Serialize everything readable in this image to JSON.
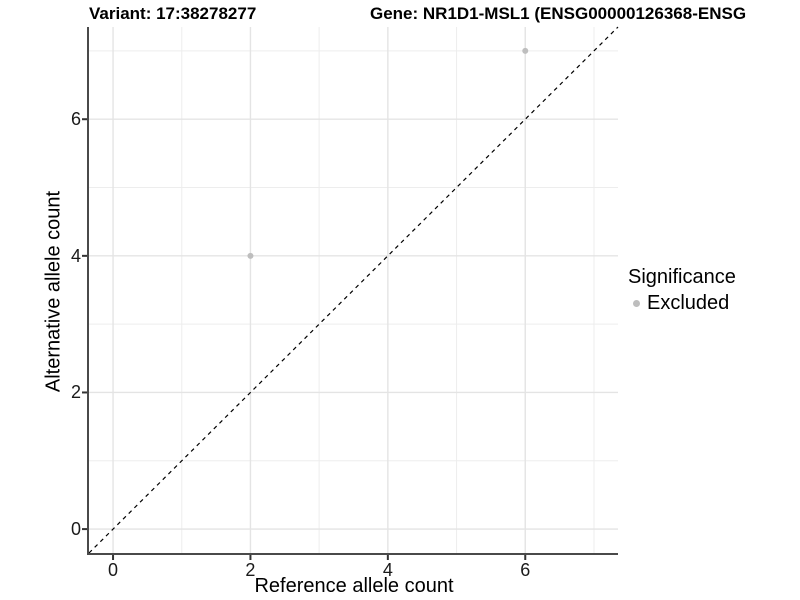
{
  "chart_data": {
    "type": "scatter",
    "title_left": "Variant: 17:38278277",
    "title_right": "Gene: NR1D1-MSL1 (ENSG00000126368-ENSG",
    "xlabel": "Reference allele count",
    "ylabel": "Alternative allele count",
    "xlim": [
      -0.35,
      7.35
    ],
    "ylim": [
      -0.35,
      7.35
    ],
    "x_ticks": [
      0,
      2,
      4,
      6
    ],
    "y_ticks": [
      0,
      2,
      4,
      6
    ],
    "x_minor_ticks": [
      1,
      3,
      5,
      7
    ],
    "y_minor_ticks": [
      1,
      3,
      5,
      7
    ],
    "grid": true,
    "identity_line": {
      "style": "dashed",
      "color": "#000000",
      "from": [
        -0.35,
        -0.35
      ],
      "to": [
        7.35,
        7.35
      ]
    },
    "series": [
      {
        "name": "Excluded",
        "color": "#bebebe",
        "points": [
          {
            "x": 2,
            "y": 4
          },
          {
            "x": 6,
            "y": 7
          }
        ]
      }
    ],
    "legend": {
      "position": "right",
      "title": "Significance",
      "items": [
        {
          "label": "Excluded",
          "color": "#bebebe",
          "marker": "circle"
        }
      ]
    }
  },
  "colors": {
    "background": "#ffffff",
    "grid_major": "#e4e4e4",
    "grid_minor": "#ededed",
    "axis_line": "#4a4a4a",
    "tick_mark": "#333333",
    "point": "#bebebe",
    "text": "#000000"
  }
}
